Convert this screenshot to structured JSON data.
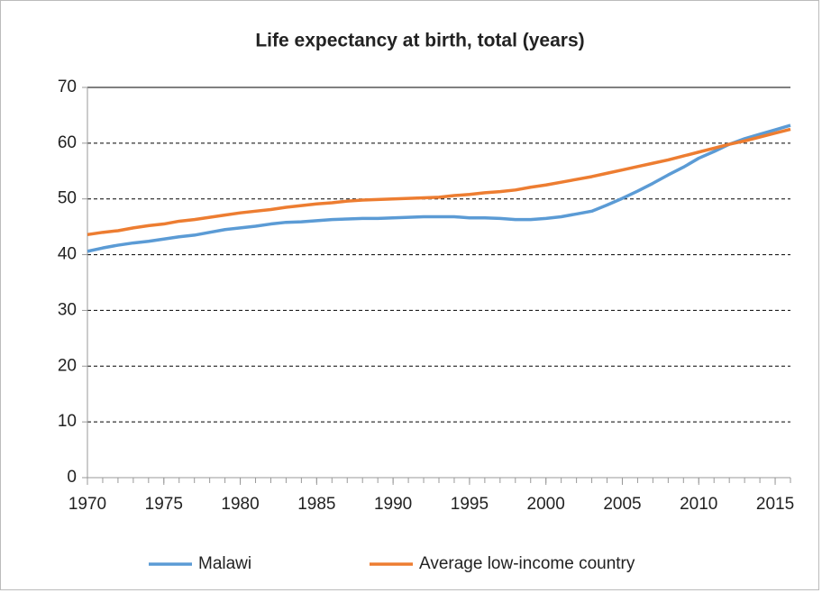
{
  "chart_data": {
    "type": "line",
    "title": "Life expectancy at birth, total (years)",
    "x": [
      1970,
      1971,
      1972,
      1973,
      1974,
      1975,
      1976,
      1977,
      1978,
      1979,
      1980,
      1981,
      1982,
      1983,
      1984,
      1985,
      1986,
      1987,
      1988,
      1989,
      1990,
      1991,
      1992,
      1993,
      1994,
      1995,
      1996,
      1997,
      1998,
      1999,
      2000,
      2001,
      2002,
      2003,
      2004,
      2005,
      2006,
      2007,
      2008,
      2009,
      2010,
      2011,
      2012,
      2013,
      2014,
      2015,
      2016
    ],
    "series": [
      {
        "name": "Malawi",
        "color": "#5b9bd5",
        "values": [
          40.6,
          41.2,
          41.7,
          42.1,
          42.4,
          42.8,
          43.2,
          43.5,
          44.0,
          44.5,
          44.8,
          45.1,
          45.5,
          45.8,
          45.9,
          46.1,
          46.3,
          46.4,
          46.5,
          46.5,
          46.6,
          46.7,
          46.8,
          46.8,
          46.8,
          46.6,
          46.6,
          46.5,
          46.3,
          46.3,
          46.5,
          46.8,
          47.3,
          47.8,
          48.9,
          50.1,
          51.4,
          52.8,
          54.3,
          55.7,
          57.3,
          58.5,
          59.8,
          60.8,
          61.6,
          62.4,
          63.2
        ]
      },
      {
        "name": "Average low-income country",
        "color": "#ed7d31",
        "values": [
          43.6,
          44.0,
          44.3,
          44.8,
          45.2,
          45.5,
          46.0,
          46.3,
          46.7,
          47.1,
          47.5,
          47.8,
          48.1,
          48.5,
          48.8,
          49.1,
          49.3,
          49.6,
          49.8,
          49.9,
          50.0,
          50.1,
          50.2,
          50.3,
          50.6,
          50.8,
          51.1,
          51.3,
          51.6,
          52.1,
          52.5,
          53.0,
          53.5,
          54.0,
          54.6,
          55.2,
          55.8,
          56.4,
          57.0,
          57.7,
          58.4,
          59.1,
          59.8,
          60.4,
          61.1,
          61.8,
          62.5
        ]
      }
    ],
    "xlim": [
      1970,
      2016
    ],
    "xticks": [
      1970,
      1975,
      1980,
      1985,
      1990,
      1995,
      2000,
      2005,
      2010,
      2015
    ],
    "ylim": [
      0,
      70
    ],
    "yticks": [
      0,
      10,
      20,
      30,
      40,
      50,
      60,
      70
    ],
    "grid": true,
    "legend": "bottom"
  }
}
